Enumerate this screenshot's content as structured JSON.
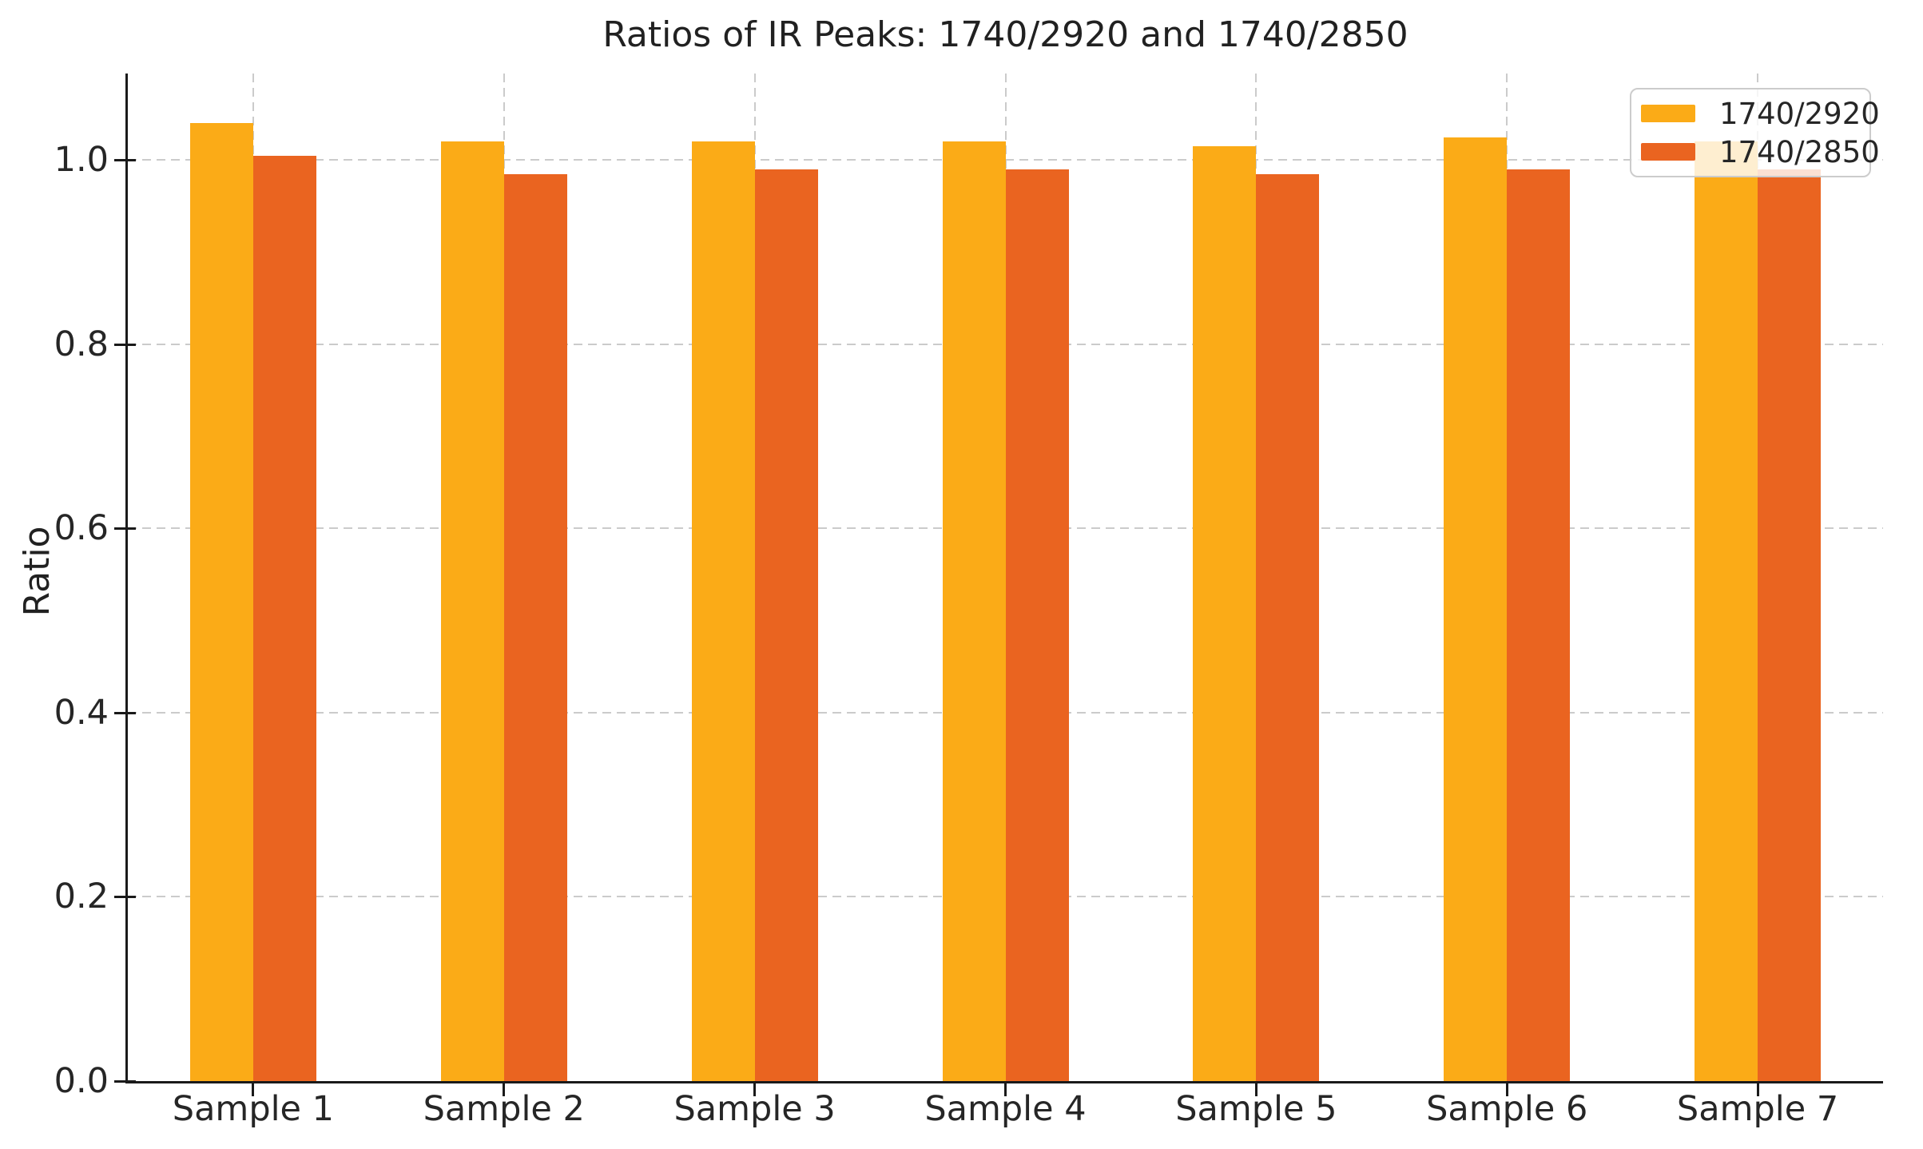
{
  "chart_data": {
    "type": "bar",
    "title": "Ratios of IR Peaks: 1740/2920 and 1740/2850",
    "ylabel": "Ratio",
    "xlabel": "",
    "categories": [
      "Sample 1",
      "Sample 2",
      "Sample 3",
      "Sample 4",
      "Sample 5",
      "Sample 6",
      "Sample 7"
    ],
    "series": [
      {
        "name": "1740/2920",
        "color": "#FBAB17",
        "values": [
          1.04,
          1.02,
          1.02,
          1.02,
          1.015,
          1.025,
          1.02
        ]
      },
      {
        "name": "1740/2850",
        "color": "#EA6420",
        "values": [
          1.005,
          0.985,
          0.99,
          0.99,
          0.985,
          0.99,
          0.99
        ]
      }
    ],
    "ylim": [
      0,
      1.094
    ],
    "yticks": [
      0,
      0.2,
      0.4,
      0.6,
      0.8,
      1.0
    ],
    "ytick_decimals": 1,
    "grid": "dashed",
    "grid_color": "#cbcbcb",
    "axis_color": "#1a1a1a",
    "text_color": "#262626",
    "legend": {
      "position": "upper right"
    }
  }
}
